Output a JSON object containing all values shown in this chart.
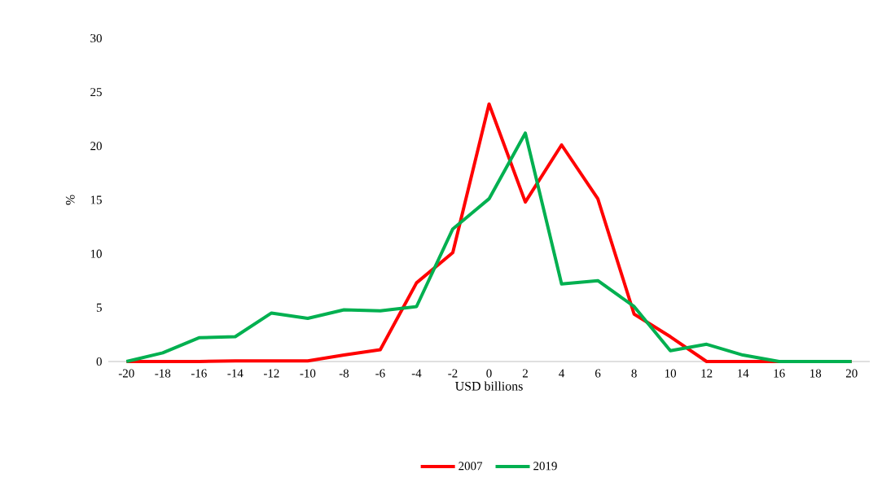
{
  "chart_data": {
    "type": "line",
    "xlabel": "USD billions",
    "ylabel": "%",
    "categories": [
      "-20",
      "-18",
      "-16",
      "-14",
      "-12",
      "-10",
      "-8",
      "-6",
      "-4",
      "-2",
      "0",
      "2",
      "4",
      "6",
      "8",
      "10",
      "12",
      "14",
      "16",
      "18",
      "20"
    ],
    "series": [
      {
        "name": "2007",
        "color": "#ff0000",
        "values": [
          0,
          0,
          0,
          0.05,
          0.05,
          0.05,
          0.6,
          1.1,
          7.3,
          10.1,
          23.9,
          14.8,
          20.1,
          15.1,
          4.4,
          2.3,
          0,
          0,
          0,
          0,
          0
        ]
      },
      {
        "name": "2019",
        "color": "#00b050",
        "values": [
          0,
          0.8,
          2.2,
          2.3,
          4.5,
          4.0,
          4.8,
          4.7,
          5.1,
          12.3,
          15.1,
          21.2,
          7.2,
          7.5,
          5.1,
          1.0,
          1.6,
          0.6,
          0,
          0,
          0
        ]
      }
    ],
    "ylim": [
      0,
      30
    ],
    "yticks": [
      0,
      5,
      10,
      15,
      20,
      25,
      30
    ],
    "legend": "bottom",
    "marker": "none",
    "line_style": "solid"
  }
}
